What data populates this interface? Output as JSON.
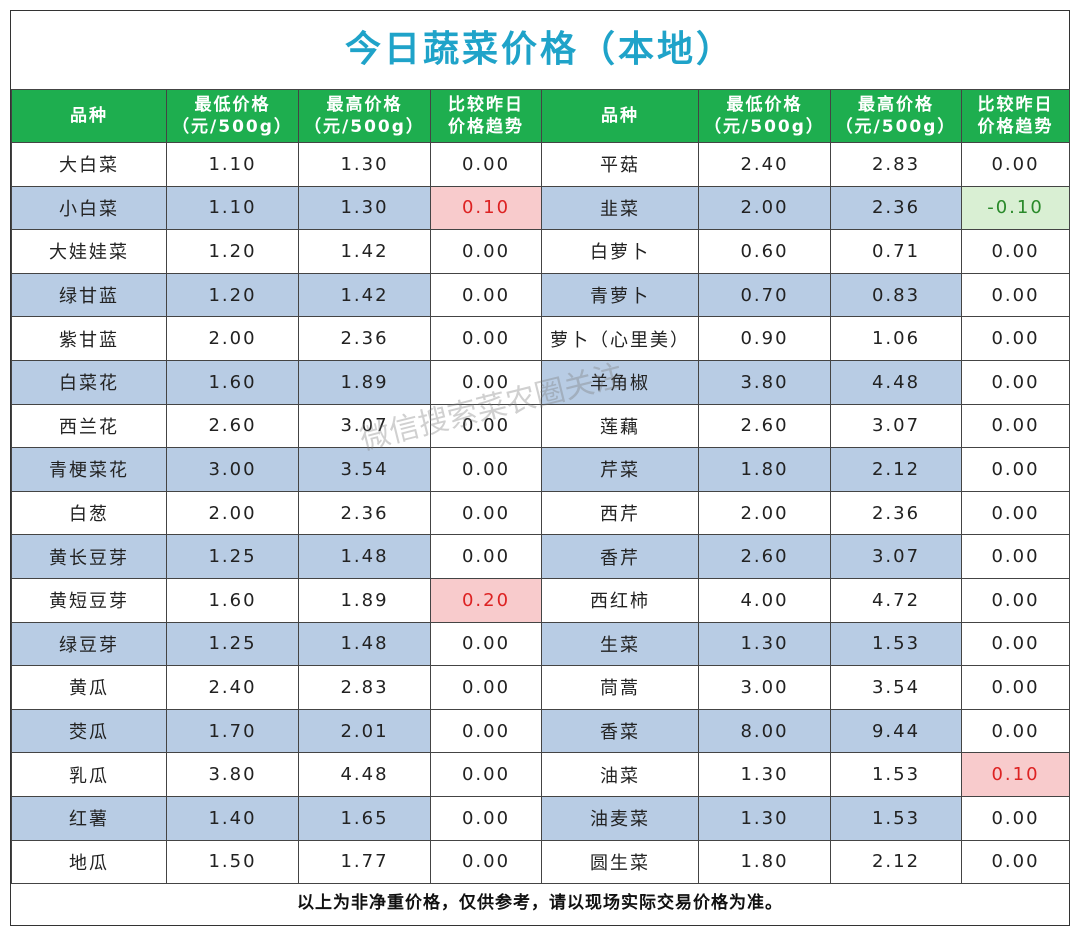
{
  "header": {
    "title": "今日蔬菜价格（本地）"
  },
  "table": {
    "columns": [
      [
        "品种"
      ],
      [
        "最低价格",
        "（元/500g）"
      ],
      [
        "最高价格",
        "（元/500g）"
      ],
      [
        "比较昨日",
        "价格趋势"
      ],
      [
        "品种"
      ],
      [
        "最低价格",
        "（元/500g）"
      ],
      [
        "最高价格",
        "（元/500g）"
      ],
      [
        "比较昨日",
        "价格趋势"
      ]
    ],
    "rows": [
      [
        "大白菜",
        "1.10",
        "1.30",
        "0.00",
        "平菇",
        "2.40",
        "2.83",
        "0.00"
      ],
      [
        "小白菜",
        "1.10",
        "1.30",
        "0.10",
        "韭菜",
        "2.00",
        "2.36",
        "-0.10"
      ],
      [
        "大娃娃菜",
        "1.20",
        "1.42",
        "0.00",
        "白萝卜",
        "0.60",
        "0.71",
        "0.00"
      ],
      [
        "绿甘蓝",
        "1.20",
        "1.42",
        "0.00",
        "青萝卜",
        "0.70",
        "0.83",
        "0.00"
      ],
      [
        "紫甘蓝",
        "2.00",
        "2.36",
        "0.00",
        "萝卜（心里美）",
        "0.90",
        "1.06",
        "0.00"
      ],
      [
        "白菜花",
        "1.60",
        "1.89",
        "0.00",
        "羊角椒",
        "3.80",
        "4.48",
        "0.00"
      ],
      [
        "西兰花",
        "2.60",
        "3.07",
        "0.00",
        "莲藕",
        "2.60",
        "3.07",
        "0.00"
      ],
      [
        "青梗菜花",
        "3.00",
        "3.54",
        "0.00",
        "芹菜",
        "1.80",
        "2.12",
        "0.00"
      ],
      [
        "白葱",
        "2.00",
        "2.36",
        "0.00",
        "西芹",
        "2.00",
        "2.36",
        "0.00"
      ],
      [
        "黄长豆芽",
        "1.25",
        "1.48",
        "0.00",
        "香芹",
        "2.60",
        "3.07",
        "0.00"
      ],
      [
        "黄短豆芽",
        "1.60",
        "1.89",
        "0.20",
        "西红柿",
        "4.00",
        "4.72",
        "0.00"
      ],
      [
        "绿豆芽",
        "1.25",
        "1.48",
        "0.00",
        "生菜",
        "1.30",
        "1.53",
        "0.00"
      ],
      [
        "黄瓜",
        "2.40",
        "2.83",
        "0.00",
        "茼蒿",
        "3.00",
        "3.54",
        "0.00"
      ],
      [
        "茭瓜",
        "1.70",
        "2.01",
        "0.00",
        "香菜",
        "8.00",
        "9.44",
        "0.00"
      ],
      [
        "乳瓜",
        "3.80",
        "4.48",
        "0.00",
        "油菜",
        "1.30",
        "1.53",
        "0.10"
      ],
      [
        "红薯",
        "1.40",
        "1.65",
        "0.00",
        "油麦菜",
        "1.30",
        "1.53",
        "0.00"
      ],
      [
        "地瓜",
        "1.50",
        "1.77",
        "0.00",
        "圆生菜",
        "1.80",
        "2.12",
        "0.00"
      ]
    ]
  },
  "footer": "以上为非净重价格，仅供参考，请以现场实际交易价格为准。",
  "watermark": "微信搜索菜农圈关注"
}
